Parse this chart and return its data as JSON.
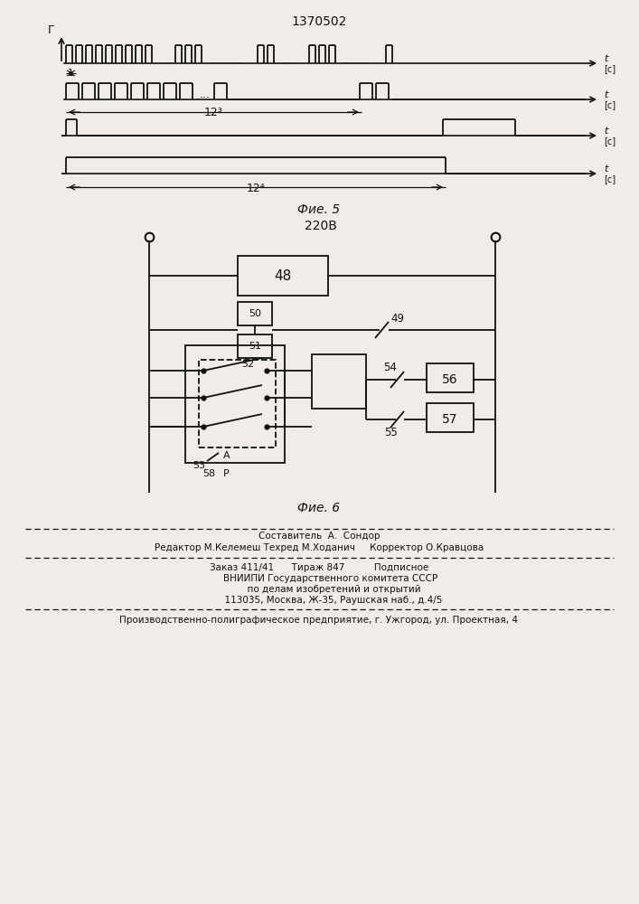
{
  "title": "1370502",
  "bg_color": "#f0ede8",
  "line_color": "#111111",
  "fig5_caption": "Фие. 5",
  "fig6_caption": "Фие. 6",
  "footer1": "Составитель  А.  Сондор",
  "footer2": "Редактор М.Келемеш Техред М.Ходанич     Корректор О.Кравцова",
  "footer3": "Заказ 411/41      Тираж 847          Подписное",
  "footer4": "        ВНИИПИ Государственного комитета СССР",
  "footer5": "          по делам изобретений и открытий",
  "footer6": "          113035, Москва, Ж-35, Раушская наб., д.4/5",
  "footer7": "Производственно-полиграфическое предприятие, г. Ужгород, ул. Проектная, 4"
}
